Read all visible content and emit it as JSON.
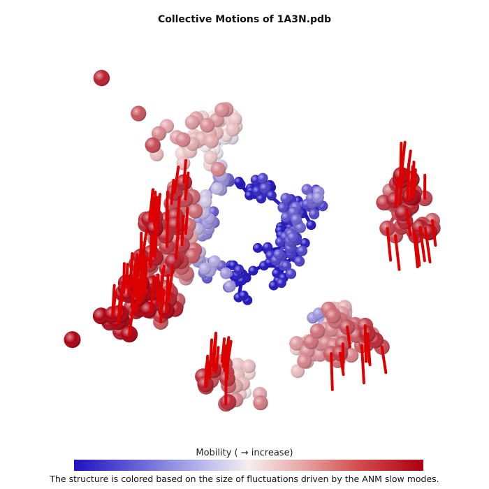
{
  "title": "Collective Motions of 1A3N.pdb",
  "legend_label": "Mobility ( → increase)",
  "caption": "The structure is colored based on the size of fluctuations driven by the ANM slow modes.",
  "colors": {
    "low_mobility": "#1f12c0",
    "mid_mobility": "#f6eeee",
    "high_mobility": "#ad0010",
    "arrow": "#dd0000"
  }
}
